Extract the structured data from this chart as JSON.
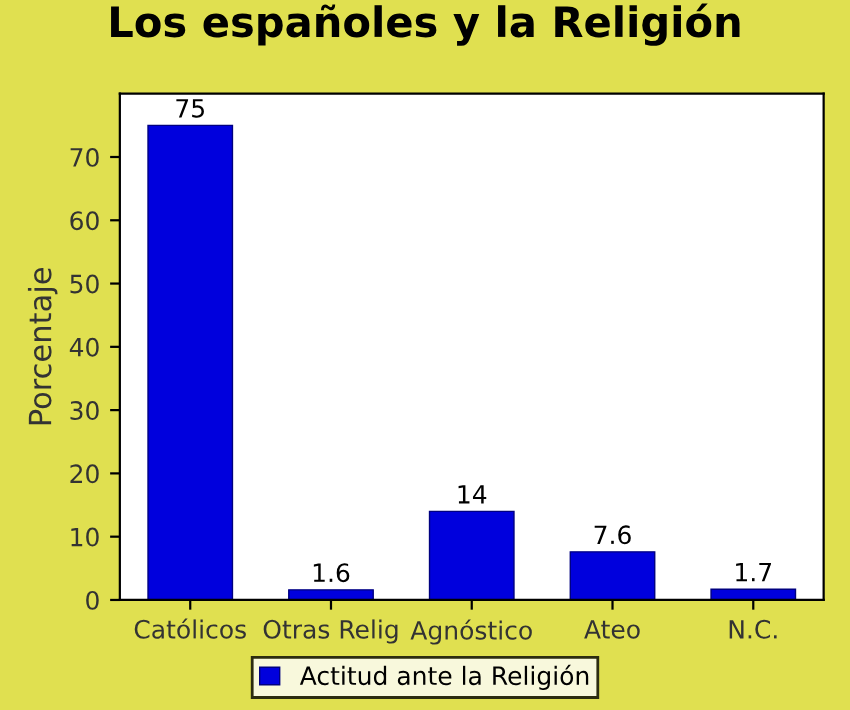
{
  "chart_data": {
    "type": "bar",
    "title": "Los españoles y la Religión",
    "ylabel": "Porcentaje",
    "categories": [
      "Católicos",
      "Otras Relig",
      "Agnóstico",
      "Ateo",
      "N.C."
    ],
    "series": [
      {
        "name": "Actitud ante la Religión",
        "color": "#0000dd",
        "values": [
          75,
          1.6,
          14,
          7.6,
          1.7
        ]
      }
    ],
    "ylim": [
      0,
      80
    ],
    "yticks": [
      0,
      10,
      20,
      30,
      40,
      50,
      60,
      70
    ],
    "grid": false,
    "legend": "bottom",
    "data_labels": true
  }
}
